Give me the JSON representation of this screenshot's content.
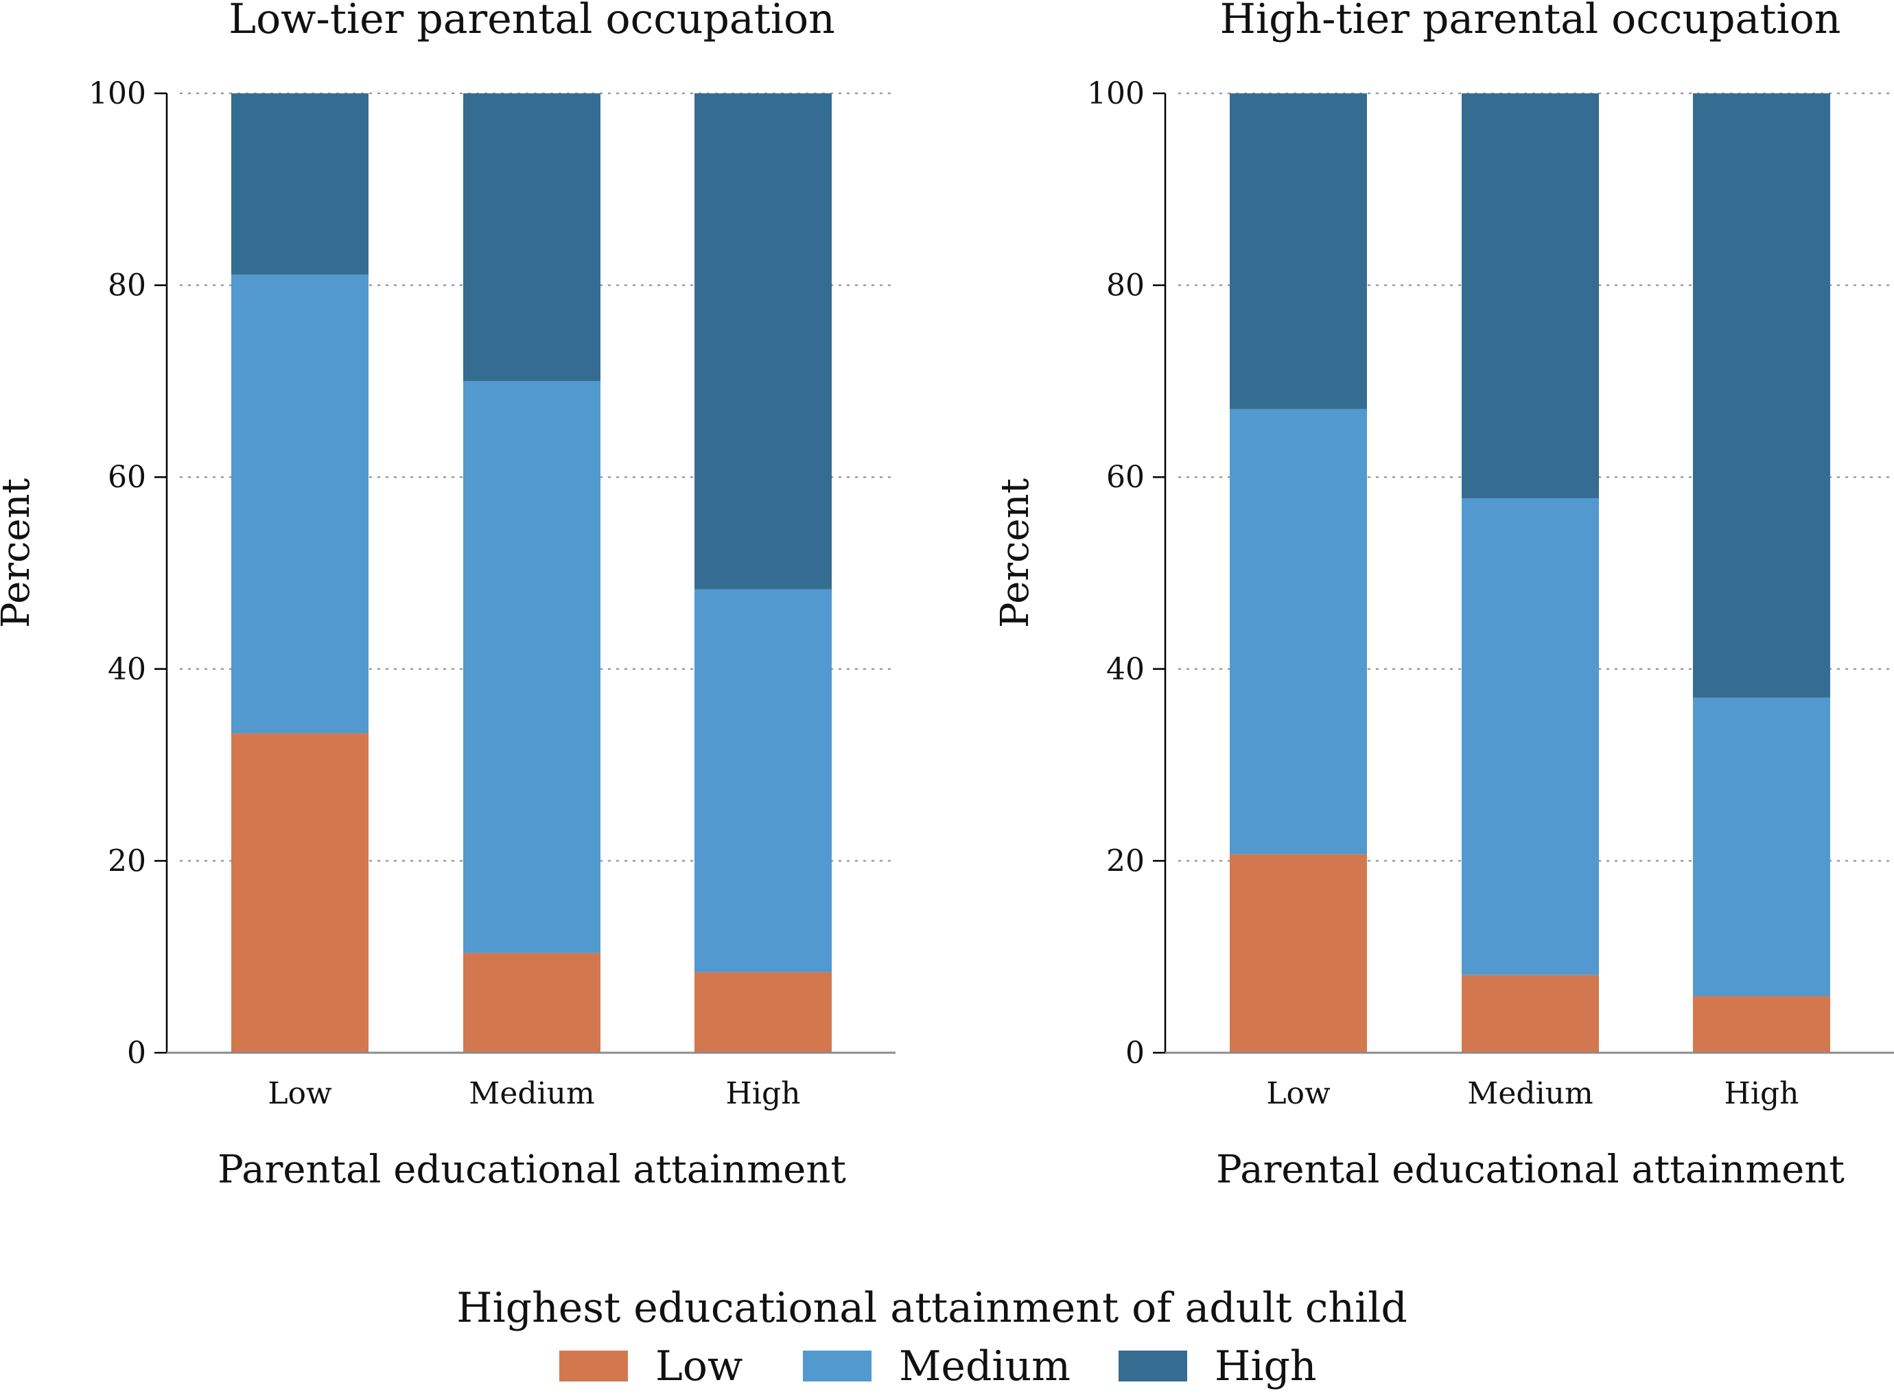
{
  "chart_data": [
    {
      "type": "bar",
      "stacked": true,
      "title": "Low-tier parental occupation",
      "xlabel": "Parental educational attainment",
      "ylabel": "Percent",
      "ylim": [
        0,
        100
      ],
      "yticks": [
        0,
        20,
        40,
        60,
        80,
        100
      ],
      "grid": true,
      "categories": [
        "Low",
        "Medium",
        "High"
      ],
      "series": [
        {
          "name": "Low",
          "values": [
            33.3,
            10.4,
            8.4
          ]
        },
        {
          "name": "Medium",
          "values": [
            47.8,
            59.6,
            39.9
          ]
        },
        {
          "name": "High",
          "values": [
            18.9,
            30.0,
            51.7
          ]
        }
      ]
    },
    {
      "type": "bar",
      "stacked": true,
      "title": "High-tier parental occupation",
      "xlabel": "Parental educational attainment",
      "ylabel": "Percent",
      "ylim": [
        0,
        100
      ],
      "yticks": [
        0,
        20,
        40,
        60,
        80,
        100
      ],
      "grid": true,
      "categories": [
        "Low",
        "Medium",
        "High"
      ],
      "series": [
        {
          "name": "Low",
          "values": [
            20.7,
            8.1,
            5.9
          ]
        },
        {
          "name": "Medium",
          "values": [
            46.4,
            49.7,
            31.1
          ]
        },
        {
          "name": "High",
          "values": [
            32.9,
            42.2,
            63.0
          ]
        }
      ]
    }
  ],
  "legend": {
    "title": "Highest educational attainment of adult child",
    "position": "bottom-center",
    "items": [
      {
        "label": "Low",
        "color": "#d3784e"
      },
      {
        "label": "Medium",
        "color": "#5299cf"
      },
      {
        "label": "High",
        "color": "#356c91"
      }
    ]
  },
  "colors": {
    "Low": "#d3784e",
    "Medium": "#5299cf",
    "High": "#356c91"
  }
}
